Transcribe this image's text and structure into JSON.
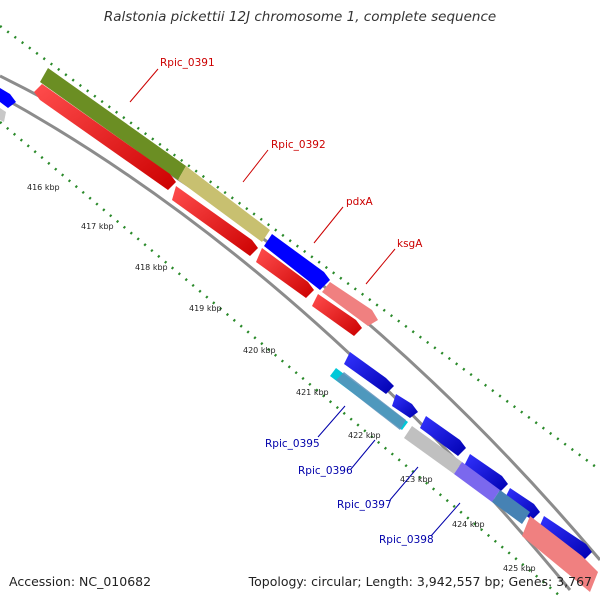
{
  "title": "Ralstonia pickettii 12J chromosome 1, complete sequence",
  "accession_text": "Accession: NC_010682",
  "summary_text": "Topology: circular; Length: 3,942,557 bp; Genes: 3,767",
  "ticks": [
    "416 kbp",
    "417 kbp",
    "418 kbp",
    "419 kbp",
    "420 kbp",
    "421 kbp",
    "422 kbp",
    "423 kbp",
    "424 kbp",
    "425 kbp"
  ],
  "gene_labels": {
    "rpic_0391": "Rpic_0391",
    "rpic_0392": "Rpic_0392",
    "pdxA": "pdxA",
    "ksgA": "ksgA",
    "rpic_0395": "Rpic_0395",
    "rpic_0396": "Rpic_0396",
    "rpic_0397": "Rpic_0397",
    "rpic_0398": "Rpic_0398"
  },
  "colors": {
    "forward_label": "#cc0000",
    "reverse_label": "#0000aa",
    "cds_red": "#ff0000",
    "cds_blue": "#0000ff",
    "olive": "#6b8e23",
    "khaki": "#c8c070",
    "pink": "#f08080",
    "cyan": "#00c8d8",
    "steelblue": "#4682b4",
    "silver": "#c0c0c0",
    "slateblue": "#7b68ee",
    "backbone": "#8c8c8c",
    "tick_green": "#2a8a2a"
  }
}
